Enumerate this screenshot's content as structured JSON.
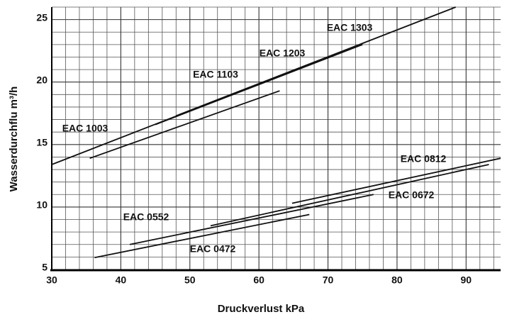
{
  "chart_data": {
    "type": "line",
    "xlabel": "Druckverlust kPa",
    "ylabel": "Wasserdurchflu m³/h",
    "xlim": [
      30,
      95
    ],
    "ylim": [
      5,
      26
    ],
    "xticks": [
      30,
      40,
      50,
      60,
      70,
      80,
      90
    ],
    "yticks": [
      5,
      10,
      15,
      20,
      25
    ],
    "xminorticks": [
      32,
      34,
      36,
      38,
      42,
      44,
      46,
      48,
      52,
      54,
      56,
      58,
      62,
      64,
      66,
      68,
      72,
      74,
      76,
      78,
      82,
      84,
      86,
      88,
      92,
      94
    ],
    "yminorticks": [
      6,
      7,
      8,
      9,
      11,
      12,
      13,
      14,
      16,
      17,
      18,
      19,
      21,
      22,
      23,
      24,
      26
    ],
    "grid": true,
    "color": "#111111",
    "series": [
      {
        "name": "EAC 1003",
        "x": [
          30,
          50
        ],
        "values": [
          13.4,
          17.7
        ]
      },
      {
        "name": "EAC 1103",
        "x": [
          35.5,
          63
        ],
        "values": [
          13.9,
          19.3
        ]
      },
      {
        "name": "EAC 1203",
        "x": [
          45,
          75
        ],
        "values": [
          16.6,
          23.0
        ]
      },
      {
        "name": "EAC 1303",
        "x": [
          48,
          88.5
        ],
        "values": [
          17.3,
          26
        ]
      },
      {
        "name": "EAC 0812",
        "x": [
          64.8,
          95
        ],
        "values": [
          10.3,
          13.9
        ]
      },
      {
        "name": "EAC 0672",
        "x": [
          53,
          93.3
        ],
        "values": [
          8.5,
          13.4
        ]
      },
      {
        "name": "EAC 0552",
        "x": [
          41.3,
          76.6
        ],
        "values": [
          7.0,
          11.0
        ]
      },
      {
        "name": "EAC 0472",
        "x": [
          36.2,
          67.3
        ],
        "values": [
          5.95,
          9.4
        ]
      }
    ]
  }
}
